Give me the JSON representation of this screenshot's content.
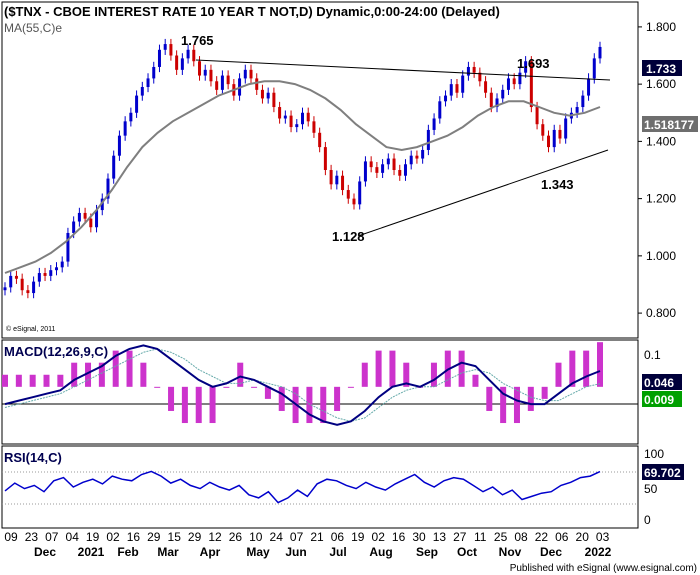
{
  "header": {
    "title": "($TNX - CBOE INTEREST RATE 10 YEAR T NOT,D) Dynamic,0:00-24:00 (Delayed)",
    "ma_label": "MA(55,C)e",
    "copyright_inner": "© eSignal, 2011",
    "footer": "Published with eSignal (www.esignal.com)"
  },
  "colors": {
    "candle_up": "#0000cc",
    "candle_down": "#cc0000",
    "ma": "#7f7f7f",
    "macd_line": "#000080",
    "macd_signal": "#66aaaa",
    "macd_hist": "#cc33cc",
    "rsi": "#0000cc",
    "label_dark_bg": "#00003a",
    "label_green_bg": "#00a000",
    "label_gray_bg": "#6e6e6e"
  },
  "chart_data": [
    {
      "type": "candlestick",
      "x_labels_top": [
        "09",
        "23",
        "07",
        "04",
        "19",
        "02",
        "16",
        "29",
        "15",
        "29",
        "12",
        "26",
        "10",
        "24",
        "07",
        "21",
        "06",
        "19",
        "02",
        "16",
        "30",
        "13",
        "27",
        "11",
        "25",
        "08",
        "22",
        "06",
        "20",
        "03"
      ],
      "x_labels_bottom": [
        "Dec",
        "2021",
        "Feb",
        "Mar",
        "Apr",
        "May",
        "Jun",
        "Jul",
        "Aug",
        "Sep",
        "Oct",
        "Nov",
        "Dec",
        "2022"
      ],
      "y_ticks": [
        "1.800",
        "1.600",
        "1.400",
        "1.200",
        "1.000",
        "0.800"
      ],
      "ylim": [
        0.72,
        1.88
      ],
      "last_price": "1.733",
      "ma_value": "1.518177",
      "annotations": [
        "1.765",
        "1.693",
        "1.128",
        "1.343"
      ],
      "close_series": [
        0.89,
        0.93,
        0.92,
        0.88,
        0.87,
        0.91,
        0.94,
        0.93,
        0.95,
        0.96,
        0.98,
        1.08,
        1.12,
        1.15,
        1.13,
        1.1,
        1.16,
        1.2,
        1.27,
        1.35,
        1.42,
        1.47,
        1.5,
        1.56,
        1.59,
        1.62,
        1.66,
        1.72,
        1.74,
        1.7,
        1.65,
        1.69,
        1.72,
        1.68,
        1.63,
        1.65,
        1.61,
        1.58,
        1.63,
        1.6,
        1.56,
        1.62,
        1.65,
        1.62,
        1.58,
        1.55,
        1.57,
        1.52,
        1.48,
        1.49,
        1.45,
        1.46,
        1.5,
        1.47,
        1.43,
        1.38,
        1.3,
        1.25,
        1.28,
        1.23,
        1.2,
        1.18,
        1.26,
        1.33,
        1.31,
        1.29,
        1.32,
        1.34,
        1.3,
        1.28,
        1.32,
        1.35,
        1.34,
        1.37,
        1.44,
        1.48,
        1.54,
        1.56,
        1.6,
        1.57,
        1.63,
        1.66,
        1.64,
        1.61,
        1.57,
        1.52,
        1.55,
        1.58,
        1.62,
        1.6,
        1.64,
        1.68,
        1.52,
        1.46,
        1.42,
        1.38,
        1.44,
        1.41,
        1.48,
        1.5,
        1.52,
        1.56,
        1.62,
        1.69,
        1.73
      ],
      "ma_series": [
        0.94,
        0.96,
        0.98,
        1.01,
        1.05,
        1.1,
        1.16,
        1.23,
        1.31,
        1.38,
        1.43,
        1.47,
        1.5,
        1.53,
        1.56,
        1.58,
        1.6,
        1.61,
        1.61,
        1.6,
        1.58,
        1.55,
        1.51,
        1.46,
        1.42,
        1.38,
        1.37,
        1.38,
        1.4,
        1.42,
        1.45,
        1.49,
        1.52,
        1.54,
        1.54,
        1.52,
        1.5,
        1.49,
        1.5,
        1.52
      ]
    },
    {
      "type": "line",
      "title": "MACD(12,26,9,C)",
      "y_ticks": [
        "0.1"
      ],
      "ylim": [
        -0.16,
        0.13
      ],
      "last_macd": "0.046",
      "last_signal": "0.009",
      "macd_series": [
        -0.05,
        -0.04,
        -0.03,
        -0.02,
        -0.01,
        0.02,
        0.04,
        0.06,
        0.09,
        0.11,
        0.12,
        0.11,
        0.08,
        0.05,
        0.02,
        0.0,
        0.01,
        0.03,
        0.02,
        0.0,
        -0.02,
        -0.05,
        -0.08,
        -0.1,
        -0.11,
        -0.1,
        -0.07,
        -0.03,
        0.0,
        0.01,
        0.0,
        0.02,
        0.05,
        0.07,
        0.06,
        0.02,
        -0.02,
        -0.04,
        -0.05,
        -0.05,
        -0.02,
        0.01,
        0.03,
        0.046
      ],
      "signal_series": [
        -0.06,
        -0.05,
        -0.04,
        -0.03,
        -0.02,
        0.0,
        0.02,
        0.04,
        0.06,
        0.08,
        0.1,
        0.11,
        0.1,
        0.08,
        0.05,
        0.03,
        0.01,
        0.01,
        0.02,
        0.01,
        0.0,
        -0.02,
        -0.05,
        -0.07,
        -0.09,
        -0.1,
        -0.09,
        -0.06,
        -0.03,
        -0.01,
        0.0,
        0.0,
        0.02,
        0.04,
        0.05,
        0.04,
        0.01,
        -0.01,
        -0.03,
        -0.04,
        -0.04,
        -0.02,
        0.0,
        0.009
      ]
    },
    {
      "type": "line",
      "title": "RSI(14,C)",
      "y_ticks": [
        "100",
        "50",
        "0"
      ],
      "ylim": [
        0,
        100
      ],
      "last_value": "69.702",
      "rsi_series": [
        45,
        55,
        48,
        52,
        44,
        58,
        62,
        50,
        56,
        60,
        54,
        64,
        60,
        58,
        66,
        70,
        64,
        55,
        60,
        52,
        48,
        56,
        50,
        46,
        52,
        40,
        36,
        44,
        30,
        36,
        46,
        38,
        54,
        60,
        58,
        52,
        48,
        56,
        50,
        46,
        54,
        60,
        66,
        56,
        50,
        58,
        62,
        60,
        52,
        44,
        50,
        40,
        46,
        34,
        38,
        42,
        44,
        52,
        56,
        62,
        64,
        69.702
      ]
    }
  ]
}
